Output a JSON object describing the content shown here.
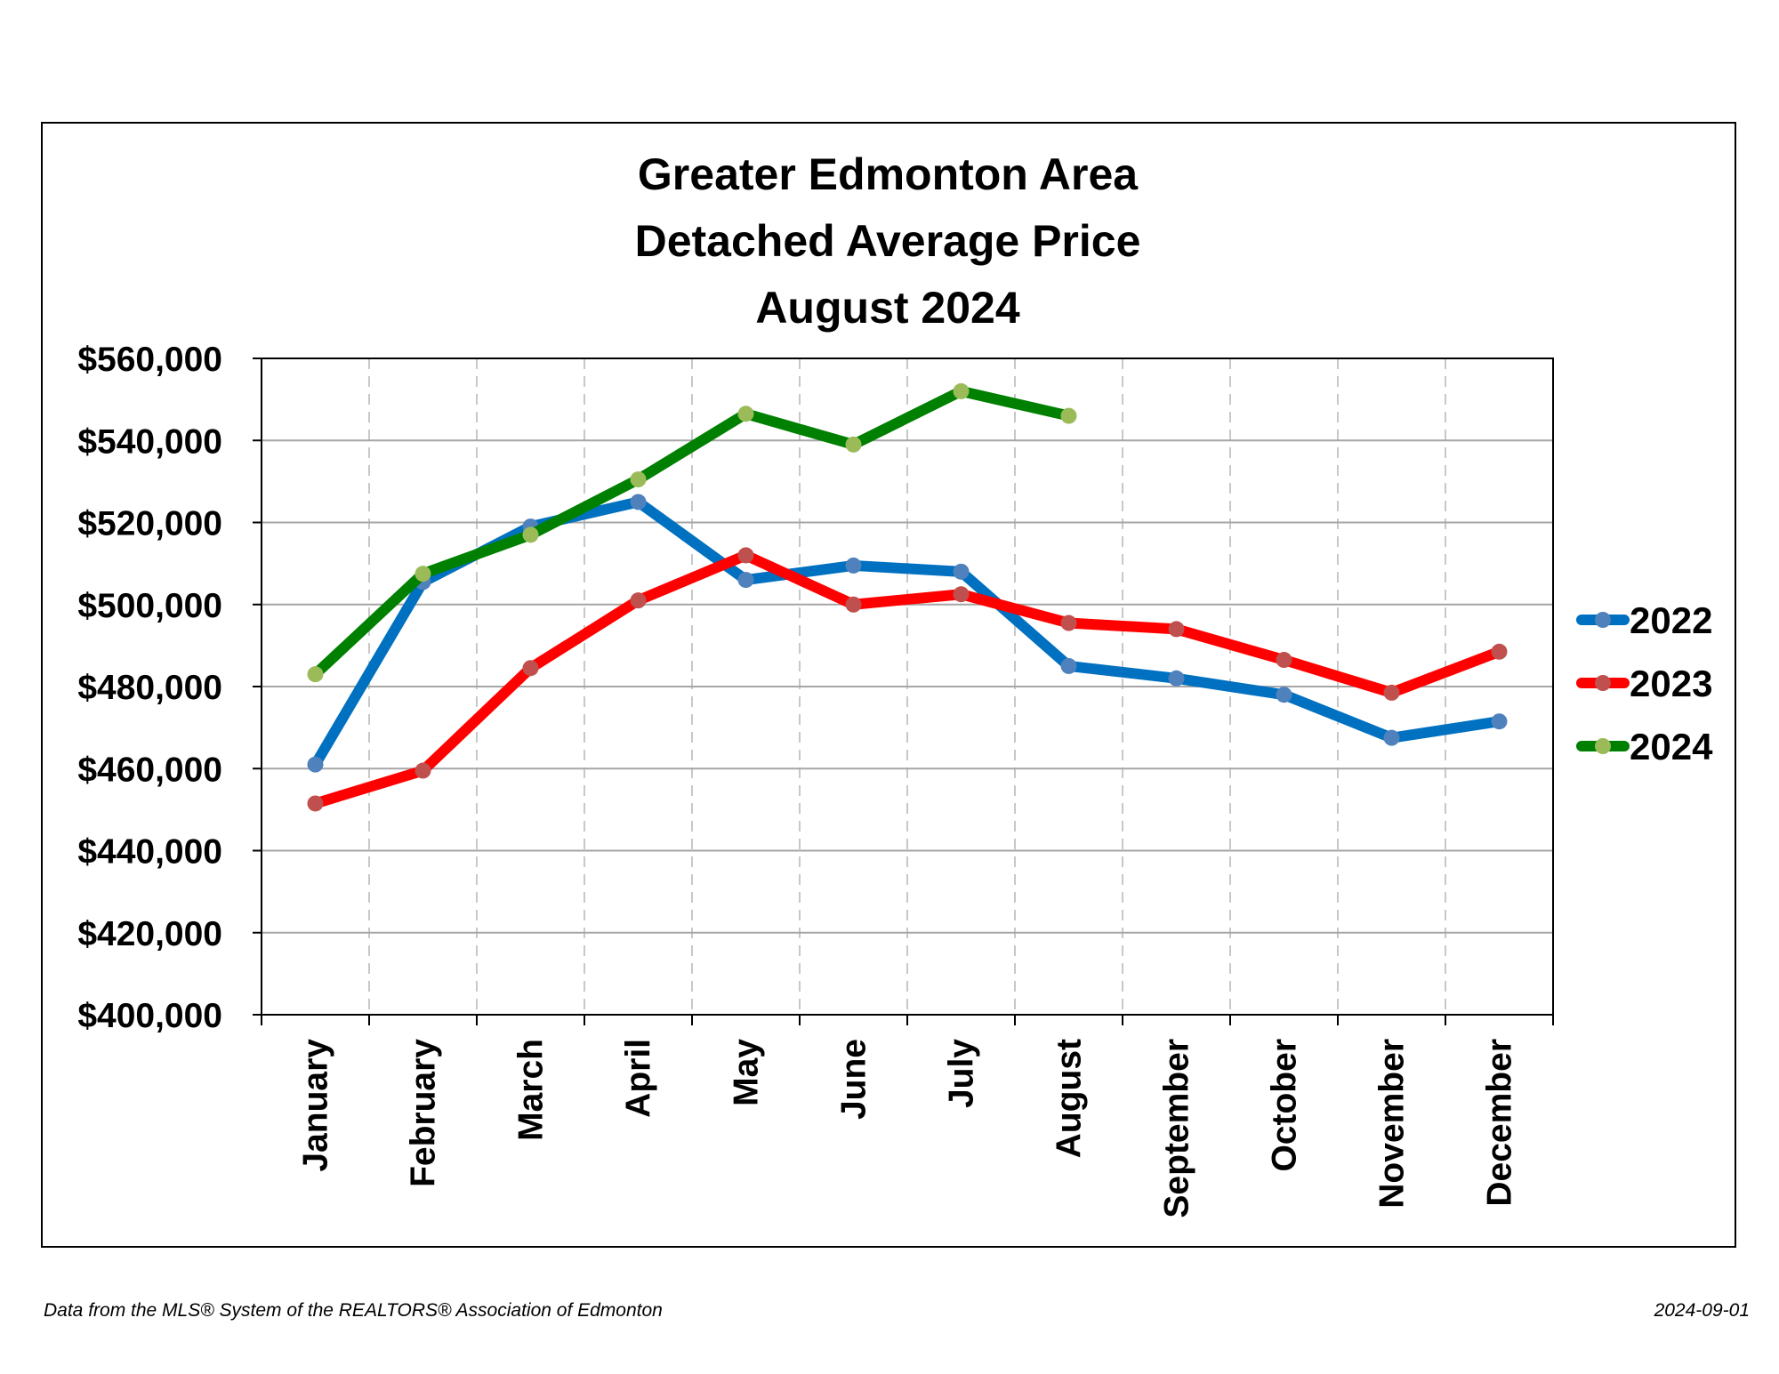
{
  "chart_data": {
    "type": "line",
    "title_lines": [
      "Greater Edmonton Area",
      "Detached Average Price",
      "August 2024"
    ],
    "categories": [
      "January",
      "February",
      "March",
      "April",
      "May",
      "June",
      "July",
      "August",
      "September",
      "October",
      "November",
      "December"
    ],
    "ylim": [
      400000,
      560000
    ],
    "ytick_values": [
      400000,
      420000,
      440000,
      460000,
      480000,
      500000,
      520000,
      540000,
      560000
    ],
    "ytick_labels": [
      "$400,000",
      "$420,000",
      "$440,000",
      "$460,000",
      "$480,000",
      "$500,000",
      "$520,000",
      "$540,000",
      "$560,000"
    ],
    "grid": true,
    "legend_position": "right",
    "series": [
      {
        "name": "2022",
        "color": "#0070C0",
        "marker_color": "#4F81BD",
        "values": [
          461000,
          505500,
          519000,
          525000,
          506000,
          509500,
          508000,
          485000,
          482000,
          478000,
          467500,
          471500
        ]
      },
      {
        "name": "2023",
        "color": "#FF0000",
        "marker_color": "#C0504D",
        "values": [
          451500,
          459500,
          484500,
          501000,
          512000,
          500000,
          502500,
          495500,
          494000,
          486500,
          478500,
          488500
        ]
      },
      {
        "name": "2024",
        "color": "#008000",
        "marker_color": "#9BBB59",
        "values": [
          483000,
          507500,
          517000,
          530500,
          546500,
          539000,
          552000,
          546000,
          null,
          null,
          null,
          null
        ]
      }
    ]
  },
  "footer": {
    "source": "Data from the MLS® System of the REALTORS® Association of Edmonton",
    "date": "2024-09-01"
  }
}
